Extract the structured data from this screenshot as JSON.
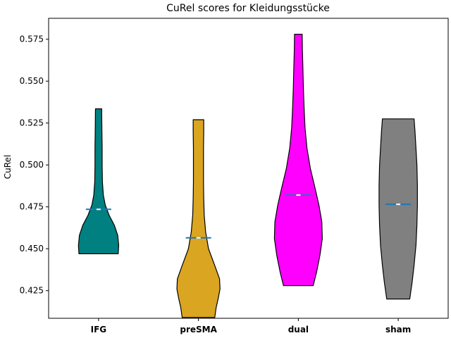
{
  "chart_data": {
    "type": "violin",
    "title": "CuRel scores for Kleidungsstücke",
    "xlabel": "",
    "ylabel": "CuRel",
    "ylim": [
      0.4085,
      0.5875
    ],
    "yticks": [
      "0.425",
      "0.450",
      "0.475",
      "0.500",
      "0.525",
      "0.550",
      "0.575"
    ],
    "grid": false,
    "median_color": "#1f77b4",
    "categories": [
      "IFG",
      "preSMA",
      "dual",
      "sham"
    ],
    "violins": [
      {
        "category": "IFG",
        "color": "#008080",
        "min": 0.447,
        "max": 0.5335,
        "median": 0.4735,
        "profile": [
          [
            0.447,
            0.82
          ],
          [
            0.452,
            0.84
          ],
          [
            0.458,
            0.8
          ],
          [
            0.464,
            0.66
          ],
          [
            0.47,
            0.44
          ],
          [
            0.476,
            0.28
          ],
          [
            0.482,
            0.2
          ],
          [
            0.49,
            0.16
          ],
          [
            0.5,
            0.15
          ],
          [
            0.51,
            0.15
          ],
          [
            0.52,
            0.14
          ],
          [
            0.5335,
            0.13
          ]
        ]
      },
      {
        "category": "preSMA",
        "color": "#DAA520",
        "min": 0.409,
        "max": 0.527,
        "median": 0.4565,
        "profile": [
          [
            0.409,
            0.68
          ],
          [
            0.415,
            0.74
          ],
          [
            0.42,
            0.82
          ],
          [
            0.426,
            0.9
          ],
          [
            0.432,
            0.88
          ],
          [
            0.44,
            0.68
          ],
          [
            0.45,
            0.42
          ],
          [
            0.46,
            0.3
          ],
          [
            0.47,
            0.24
          ],
          [
            0.48,
            0.22
          ],
          [
            0.49,
            0.21
          ],
          [
            0.5,
            0.21
          ],
          [
            0.51,
            0.21
          ],
          [
            0.52,
            0.22
          ],
          [
            0.527,
            0.22
          ]
        ]
      },
      {
        "category": "dual",
        "color": "#FF00FF",
        "min": 0.428,
        "max": 0.578,
        "median": 0.482,
        "profile": [
          [
            0.428,
            0.62
          ],
          [
            0.436,
            0.76
          ],
          [
            0.446,
            0.9
          ],
          [
            0.456,
            1.0
          ],
          [
            0.466,
            0.98
          ],
          [
            0.476,
            0.86
          ],
          [
            0.486,
            0.7
          ],
          [
            0.498,
            0.5
          ],
          [
            0.51,
            0.36
          ],
          [
            0.522,
            0.28
          ],
          [
            0.534,
            0.24
          ],
          [
            0.546,
            0.21
          ],
          [
            0.558,
            0.19
          ],
          [
            0.568,
            0.17
          ],
          [
            0.578,
            0.16
          ]
        ]
      },
      {
        "category": "sham",
        "color": "#808080",
        "min": 0.42,
        "max": 0.5275,
        "median": 0.4765,
        "profile": [
          [
            0.42,
            0.48
          ],
          [
            0.43,
            0.58
          ],
          [
            0.44,
            0.66
          ],
          [
            0.452,
            0.74
          ],
          [
            0.464,
            0.78
          ],
          [
            0.476,
            0.8
          ],
          [
            0.488,
            0.8
          ],
          [
            0.5,
            0.78
          ],
          [
            0.51,
            0.74
          ],
          [
            0.52,
            0.7
          ],
          [
            0.5275,
            0.66
          ]
        ]
      }
    ]
  }
}
